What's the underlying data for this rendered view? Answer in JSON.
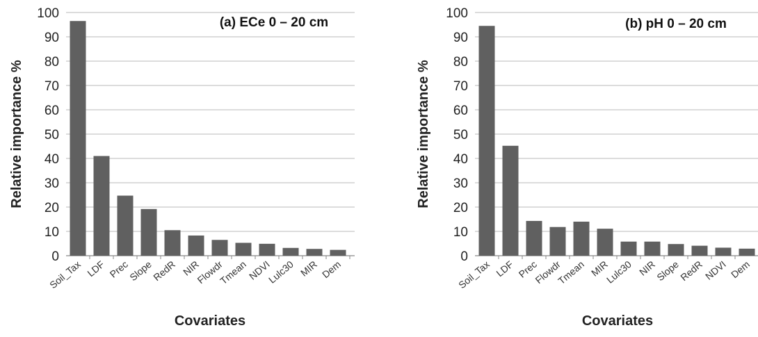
{
  "colors": {
    "bar": "#606060",
    "grid": "#b8b8b8",
    "axis": "#888888",
    "text": "#222222"
  },
  "chart_data": [
    {
      "type": "bar",
      "title": "(a) ECe 0 – 20 cm",
      "xlabel": "Covariates",
      "ylabel": "Relative importance %",
      "ylim": [
        0,
        100
      ],
      "yticks": [
        0,
        10,
        20,
        30,
        40,
        50,
        60,
        70,
        80,
        90,
        100
      ],
      "grid": true,
      "categories": [
        "Soil_Tax",
        "LDF",
        "Prec",
        "Slope",
        "RedR",
        "NIR",
        "Flowdr",
        "Tmean",
        "NDVI",
        "Lulc30",
        "MIR",
        "Dem"
      ],
      "values": [
        96.5,
        41,
        24.7,
        19.2,
        10.5,
        8.3,
        6.5,
        5.3,
        4.9,
        3.2,
        2.8,
        2.4
      ]
    },
    {
      "type": "bar",
      "title": "(b) pH 0 – 20 cm",
      "xlabel": "Covariates",
      "ylabel": "Relative importance %",
      "ylim": [
        0,
        100
      ],
      "yticks": [
        0,
        10,
        20,
        30,
        40,
        50,
        60,
        70,
        80,
        90,
        100
      ],
      "grid": true,
      "categories": [
        "Soil_Tax",
        "LDF",
        "Prec",
        "Flowdr",
        "Tmean",
        "MIR",
        "Lulc30",
        "NIR",
        "Slope",
        "RedR",
        "NDVI",
        "Dem"
      ],
      "values": [
        94.5,
        45.2,
        14.3,
        11.8,
        14,
        11.1,
        5.8,
        5.8,
        4.8,
        4.1,
        3.3,
        2.9
      ]
    }
  ]
}
